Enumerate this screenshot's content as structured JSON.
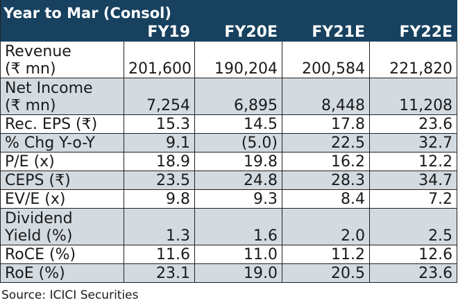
{
  "table": {
    "title": "Year to Mar (Consol)",
    "columns": [
      "FY19",
      "FY20E",
      "FY21E",
      "FY22E"
    ],
    "rows": [
      {
        "label_line1": "Revenue",
        "label_line2": "(₹ mn)",
        "values": [
          "201,600",
          "190,204",
          "200,584",
          "221,820"
        ]
      },
      {
        "label_line1": "Net Income",
        "label_line2": "(₹ mn)",
        "values": [
          "7,254",
          "6,895",
          "8,448",
          "11,208"
        ]
      },
      {
        "label": "Rec. EPS (₹)",
        "values": [
          "15.3",
          "14.5",
          "17.8",
          "23.6"
        ]
      },
      {
        "label": "% Chg Y-o-Y",
        "values": [
          "9.1",
          "(5.0)",
          "22.5",
          "32.7"
        ]
      },
      {
        "label": "P/E (x)",
        "values": [
          "18.9",
          "19.8",
          "16.2",
          "12.2"
        ]
      },
      {
        "label": "CEPS (₹)",
        "values": [
          "23.5",
          "24.8",
          "28.3",
          "34.7"
        ]
      },
      {
        "label": "EV/E (x)",
        "values": [
          "9.8",
          "9.3",
          "8.4",
          "7.2"
        ]
      },
      {
        "label_line1": "Dividend",
        "label_line2": "Yield (%)",
        "values": [
          "1.3",
          "1.6",
          "2.0",
          "2.5"
        ]
      },
      {
        "label": "RoCE (%)",
        "values": [
          "11.6",
          "11.0",
          "11.2",
          "12.6"
        ]
      },
      {
        "label": "RoE (%)",
        "values": [
          "23.1",
          "19.0",
          "20.5",
          "23.6"
        ]
      }
    ]
  },
  "source": "Source: ICICI Securities",
  "colors": {
    "header_bg": "#17415f",
    "header_text": "#ffffff",
    "shaded_row": "#d3dbe1",
    "plain_row": "#ffffff"
  }
}
